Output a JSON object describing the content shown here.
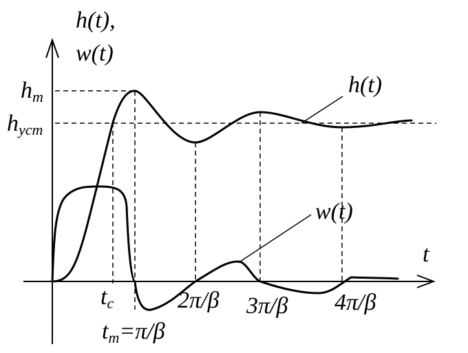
{
  "axes": {
    "y_label_line1": "h(t),",
    "y_label_line2": "w(t)",
    "x_label": "t"
  },
  "levels": {
    "hm": {
      "main": "h",
      "sub": "m"
    },
    "hust": {
      "main": "h",
      "sub": "уст"
    }
  },
  "ticks": {
    "tc": {
      "main": "t",
      "sub": "c"
    },
    "tm": {
      "main": "t",
      "sub": "m",
      "rest": "=π/β"
    },
    "t2": "2π/β",
    "t3": "3π/β",
    "t4": "4π/β"
  },
  "curves": {
    "h_label": "h(t)",
    "w_label": "w(t)"
  }
}
